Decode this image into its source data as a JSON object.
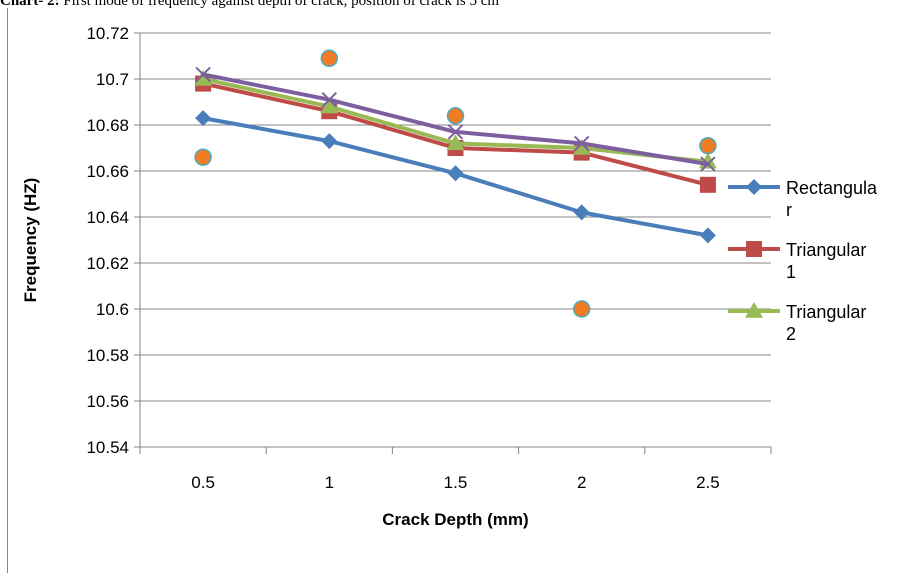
{
  "caption": {
    "label": "Chart- 2:",
    "text": " First mode of frequency against depth of crack, position of crack is 5 cm"
  },
  "chart_data": {
    "type": "line",
    "title": "",
    "xlabel": "Crack Depth (mm)",
    "ylabel": "Frequency (HZ)",
    "categories": [
      "0.5",
      "1",
      "1.5",
      "2",
      "2.5"
    ],
    "ylim": [
      10.54,
      10.72
    ],
    "yticks": [
      "10.54",
      "10.56",
      "10.58",
      "10.6",
      "10.62",
      "10.64",
      "10.66",
      "10.68",
      "10.7",
      "10.72"
    ],
    "grid": "horizontal",
    "legend_position": "right",
    "series": [
      {
        "name": "Rectangular",
        "legend_lines": [
          "Rectangula",
          "r"
        ],
        "color": "#4A7EBB",
        "marker": "diamond",
        "line": true,
        "values": [
          10.683,
          10.673,
          10.659,
          10.642,
          10.632
        ]
      },
      {
        "name": "Triangular 1",
        "legend_lines": [
          "Triangular",
          "1"
        ],
        "color": "#BE4B48",
        "marker": "square",
        "line": true,
        "values": [
          10.698,
          10.686,
          10.67,
          10.668,
          10.654
        ]
      },
      {
        "name": "Triangular 2",
        "legend_lines": [
          "Triangular",
          "2"
        ],
        "color": "#98B954",
        "marker": "triangle",
        "line": true,
        "values": [
          10.7,
          10.688,
          10.672,
          10.67,
          10.664
        ]
      },
      {
        "color": "#7D5FA0",
        "marker": "x",
        "line": true,
        "values": [
          10.702,
          10.691,
          10.677,
          10.672,
          10.663
        ]
      },
      {
        "color": "#F07C23",
        "stroke": "#4BACC6",
        "marker": "circle",
        "line": false,
        "values": [
          10.666,
          10.709,
          10.684,
          10.6,
          10.671
        ]
      }
    ]
  }
}
